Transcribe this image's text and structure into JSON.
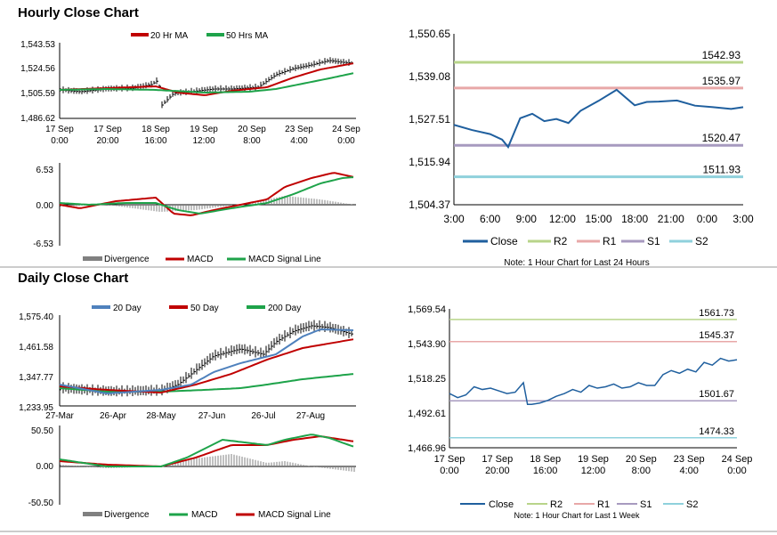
{
  "colors": {
    "close": "#1f5f9e",
    "r2": "#b8d48a",
    "r1": "#e8a8a8",
    "s1": "#a79abf",
    "s2": "#8fd1dc",
    "ma_short": "#c00000",
    "ma_long": "#1ea34a",
    "ma_mid": "#4f81bd",
    "divergence": "#808080",
    "price": "#000000"
  },
  "hourly": {
    "title": "Hourly Close Chart",
    "price": {
      "legend": [
        "20 Hr MA",
        "50 Hrs MA"
      ],
      "yticks": [
        "1,543.53",
        "1,524.56",
        "1,505.59",
        "1,486.62"
      ],
      "xticks": [
        [
          "17 Sep",
          "0:00"
        ],
        [
          "17 Sep",
          "20:00"
        ],
        [
          "18 Sep",
          "16:00"
        ],
        [
          "19 Sep",
          "12:00"
        ],
        [
          "20 Sep",
          "8:00"
        ],
        [
          "23 Sep",
          "4:00"
        ],
        [
          "24 Sep",
          "0:00"
        ]
      ]
    },
    "macd": {
      "yticks": [
        "6.53",
        "0.00",
        "-6.53"
      ],
      "legend": [
        "Divergence",
        "MACD",
        "MACD Signal Line"
      ]
    }
  },
  "hourly_levels": {
    "chart_data": {
      "type": "line",
      "title": "",
      "ylim": [
        1504.37,
        1550.65
      ],
      "yticks": [
        "1,550.65",
        "1,539.08",
        "1,527.51",
        "1,515.94",
        "1,504.37"
      ],
      "xticks": [
        "3:00",
        "6:00",
        "9:00",
        "12:00",
        "15:00",
        "18:00",
        "21:00",
        "0:00",
        "3:00"
      ],
      "x": [
        0,
        1.5,
        3,
        4,
        4.5,
        5.5,
        6.5,
        7.5,
        8.5,
        9.5,
        10.5,
        12,
        13.5,
        15,
        16,
        17,
        18.5,
        20,
        21.5,
        23,
        24
      ],
      "series": [
        {
          "name": "Close",
          "values": [
            1526.0,
            1524.6,
            1523.5,
            1522.0,
            1520.0,
            1527.8,
            1529.0,
            1527.0,
            1527.6,
            1526.5,
            1529.8,
            1532.5,
            1535.5,
            1531.3,
            1532.2,
            1532.3,
            1532.6,
            1531.2,
            1530.8,
            1530.3,
            1530.8
          ]
        }
      ],
      "levels": [
        {
          "name": "R2",
          "value": 1542.93,
          "label": "1542.93"
        },
        {
          "name": "R1",
          "value": 1535.97,
          "label": "1535.97"
        },
        {
          "name": "S1",
          "value": 1520.47,
          "label": "1520.47"
        },
        {
          "name": "S2",
          "value": 1511.93,
          "label": "1511.93"
        }
      ],
      "legend": [
        "Close",
        "R2",
        "R1",
        "S1",
        "S2"
      ],
      "note": "Note: 1 Hour Chart for Last 24 Hours"
    }
  },
  "daily": {
    "title": "Daily Close Chart",
    "price": {
      "legend": [
        "20 Day",
        "50 Day",
        "200 Day"
      ],
      "yticks": [
        "1,575.40",
        "1,461.58",
        "1,347.77",
        "1,233.95"
      ],
      "xticks": [
        "27-Mar",
        "26-Apr",
        "28-May",
        "27-Jun",
        "26-Jul",
        "27-Aug"
      ]
    },
    "macd": {
      "yticks": [
        "50.50",
        "0.00",
        "-50.50"
      ],
      "legend": [
        "Divergence",
        "MACD",
        "MACD Signal Line"
      ]
    }
  },
  "weekly_levels": {
    "chart_data": {
      "type": "line",
      "title": "",
      "ylim": [
        1466.96,
        1569.54
      ],
      "yticks": [
        "1,569.54",
        "1,543.90",
        "1,518.25",
        "1,492.61",
        "1,466.96"
      ],
      "xticks": [
        [
          "17 Sep",
          "0:00"
        ],
        [
          "17 Sep",
          "20:00"
        ],
        [
          "18 Sep",
          "16:00"
        ],
        [
          "19 Sep",
          "12:00"
        ],
        [
          "20 Sep",
          "8:00"
        ],
        [
          "23 Sep",
          "4:00"
        ],
        [
          "24 Sep",
          "0:00"
        ]
      ],
      "x": [
        0,
        4,
        8,
        12,
        16,
        20,
        24,
        28,
        32,
        36,
        38,
        40,
        44,
        48,
        52,
        56,
        60,
        64,
        68,
        72,
        76,
        80,
        84,
        88,
        92,
        96,
        100,
        104,
        108,
        112,
        116,
        120,
        124,
        128,
        132,
        136,
        140
      ],
      "series": [
        {
          "name": "Close",
          "values": [
            1507,
            1504,
            1506,
            1512,
            1510,
            1511,
            1509,
            1507,
            1508,
            1515,
            1499,
            1499,
            1500,
            1502,
            1505,
            1507,
            1510,
            1508,
            1513,
            1511,
            1512,
            1514,
            1511,
            1512,
            1515,
            1513,
            1513,
            1521,
            1524,
            1522,
            1525,
            1523,
            1530,
            1528,
            1533,
            1531,
            1532
          ]
        }
      ],
      "levels": [
        {
          "name": "R2",
          "value": 1561.73,
          "label": "1561.73"
        },
        {
          "name": "R1",
          "value": 1545.37,
          "label": "1545.37"
        },
        {
          "name": "S1",
          "value": 1501.67,
          "label": "1501.67"
        },
        {
          "name": "S2",
          "value": 1474.33,
          "label": "1474.33"
        }
      ],
      "legend": [
        "Close",
        "R2",
        "R1",
        "S1",
        "S2"
      ],
      "note": "Note: 1 Hour Chart for Last 1 Week"
    }
  }
}
